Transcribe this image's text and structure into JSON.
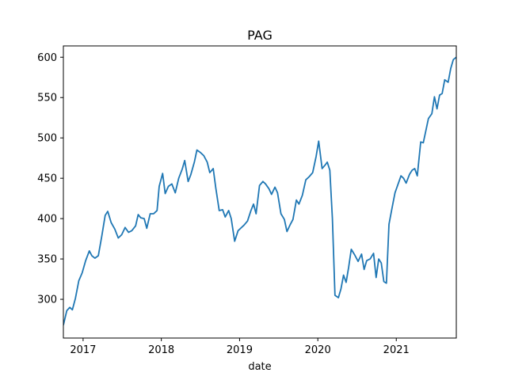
{
  "chart_data": {
    "type": "line",
    "title": "PAG",
    "xlabel": "date",
    "ylabel": "",
    "xlim": [
      "2016-10-01",
      "2021-10-08"
    ],
    "ylim": [
      252,
      614
    ],
    "grid": false,
    "legend": "none",
    "line_color": "#1f77b4",
    "xticks": [
      {
        "label": "2017",
        "date": "2017-01-01"
      },
      {
        "label": "2018",
        "date": "2018-01-01"
      },
      {
        "label": "2019",
        "date": "2019-01-01"
      },
      {
        "label": "2020",
        "date": "2020-01-01"
      },
      {
        "label": "2021",
        "date": "2021-01-01"
      }
    ],
    "yticks": [
      300,
      350,
      400,
      450,
      500,
      550,
      600
    ],
    "series": [
      {
        "values": [
          [
            "2016-10-01",
            268
          ],
          [
            "2016-10-17",
            286
          ],
          [
            "2016-10-31",
            290
          ],
          [
            "2016-11-12",
            287
          ],
          [
            "2016-11-26",
            301
          ],
          [
            "2016-12-12",
            323
          ],
          [
            "2016-12-28",
            333
          ],
          [
            "2017-01-13",
            348
          ],
          [
            "2017-01-30",
            360
          ],
          [
            "2017-02-11",
            354
          ],
          [
            "2017-02-25",
            351
          ],
          [
            "2017-03-13",
            354
          ],
          [
            "2017-03-29",
            378
          ],
          [
            "2017-04-14",
            404
          ],
          [
            "2017-04-26",
            409
          ],
          [
            "2017-05-12",
            395
          ],
          [
            "2017-05-29",
            387
          ],
          [
            "2017-06-14",
            376
          ],
          [
            "2017-06-30",
            380
          ],
          [
            "2017-07-16",
            389
          ],
          [
            "2017-08-01",
            383
          ],
          [
            "2017-08-16",
            385
          ],
          [
            "2017-09-03",
            391
          ],
          [
            "2017-09-15",
            405
          ],
          [
            "2017-09-27",
            401
          ],
          [
            "2017-10-13",
            400
          ],
          [
            "2017-10-25",
            388
          ],
          [
            "2017-11-10",
            406
          ],
          [
            "2017-11-26",
            406
          ],
          [
            "2017-12-12",
            410
          ],
          [
            "2017-12-22",
            440
          ],
          [
            "2018-01-07",
            456
          ],
          [
            "2018-01-19",
            431
          ],
          [
            "2018-02-03",
            440
          ],
          [
            "2018-02-19",
            443
          ],
          [
            "2018-03-07",
            432
          ],
          [
            "2018-03-23",
            450
          ],
          [
            "2018-04-08",
            461
          ],
          [
            "2018-04-20",
            472
          ],
          [
            "2018-05-06",
            446
          ],
          [
            "2018-05-18",
            454
          ],
          [
            "2018-06-04",
            470
          ],
          [
            "2018-06-16",
            485
          ],
          [
            "2018-07-02",
            482
          ],
          [
            "2018-07-18",
            478
          ],
          [
            "2018-08-03",
            470
          ],
          [
            "2018-08-15",
            457
          ],
          [
            "2018-08-31",
            462
          ],
          [
            "2018-09-12",
            438
          ],
          [
            "2018-09-28",
            410
          ],
          [
            "2018-10-14",
            411
          ],
          [
            "2018-10-26",
            402
          ],
          [
            "2018-11-11",
            410
          ],
          [
            "2018-11-23",
            400
          ],
          [
            "2018-12-09",
            372
          ],
          [
            "2018-12-25",
            385
          ],
          [
            "2019-01-06",
            388
          ],
          [
            "2019-01-22",
            392
          ],
          [
            "2019-02-07",
            397
          ],
          [
            "2019-02-23",
            410
          ],
          [
            "2019-03-07",
            418
          ],
          [
            "2019-03-19",
            406
          ],
          [
            "2019-04-04",
            441
          ],
          [
            "2019-04-20",
            446
          ],
          [
            "2019-05-02",
            443
          ],
          [
            "2019-05-18",
            437
          ],
          [
            "2019-05-30",
            430
          ],
          [
            "2019-06-15",
            439
          ],
          [
            "2019-06-27",
            432
          ],
          [
            "2019-07-13",
            406
          ],
          [
            "2019-07-29",
            399
          ],
          [
            "2019-08-10",
            384
          ],
          [
            "2019-08-26",
            393
          ],
          [
            "2019-09-07",
            399
          ],
          [
            "2019-09-23",
            423
          ],
          [
            "2019-10-05",
            418
          ],
          [
            "2019-10-21",
            429
          ],
          [
            "2019-11-06",
            448
          ],
          [
            "2019-11-22",
            452
          ],
          [
            "2019-12-08",
            457
          ],
          [
            "2019-12-24",
            477
          ],
          [
            "2020-01-05",
            496
          ],
          [
            "2020-01-21",
            462
          ],
          [
            "2020-02-06",
            467
          ],
          [
            "2020-02-14",
            470
          ],
          [
            "2020-02-26",
            460
          ],
          [
            "2020-03-09",
            400
          ],
          [
            "2020-03-21",
            305
          ],
          [
            "2020-04-06",
            302
          ],
          [
            "2020-04-18",
            313
          ],
          [
            "2020-04-30",
            330
          ],
          [
            "2020-05-12",
            321
          ],
          [
            "2020-05-24",
            340
          ],
          [
            "2020-06-05",
            362
          ],
          [
            "2020-06-21",
            355
          ],
          [
            "2020-07-07",
            347
          ],
          [
            "2020-07-23",
            356
          ],
          [
            "2020-08-04",
            337
          ],
          [
            "2020-08-16",
            348
          ],
          [
            "2020-09-01",
            350
          ],
          [
            "2020-09-17",
            357
          ],
          [
            "2020-09-29",
            327
          ],
          [
            "2020-10-11",
            350
          ],
          [
            "2020-10-23",
            345
          ],
          [
            "2020-11-04",
            322
          ],
          [
            "2020-11-16",
            320
          ],
          [
            "2020-11-28",
            393
          ],
          [
            "2020-12-10",
            410
          ],
          [
            "2020-12-26",
            432
          ],
          [
            "2021-01-11",
            444
          ],
          [
            "2021-01-23",
            453
          ],
          [
            "2021-02-04",
            450
          ],
          [
            "2021-02-16",
            444
          ],
          [
            "2021-03-04",
            455
          ],
          [
            "2021-03-16",
            460
          ],
          [
            "2021-03-28",
            462
          ],
          [
            "2021-04-09",
            453
          ],
          [
            "2021-04-25",
            495
          ],
          [
            "2021-05-07",
            494
          ],
          [
            "2021-05-19",
            509
          ],
          [
            "2021-05-31",
            524
          ],
          [
            "2021-06-16",
            530
          ],
          [
            "2021-06-28",
            551
          ],
          [
            "2021-07-10",
            536
          ],
          [
            "2021-07-22",
            553
          ],
          [
            "2021-08-03",
            555
          ],
          [
            "2021-08-15",
            572
          ],
          [
            "2021-08-31",
            569
          ],
          [
            "2021-09-12",
            586
          ],
          [
            "2021-09-24",
            597
          ],
          [
            "2021-10-08",
            600
          ]
        ]
      }
    ]
  }
}
